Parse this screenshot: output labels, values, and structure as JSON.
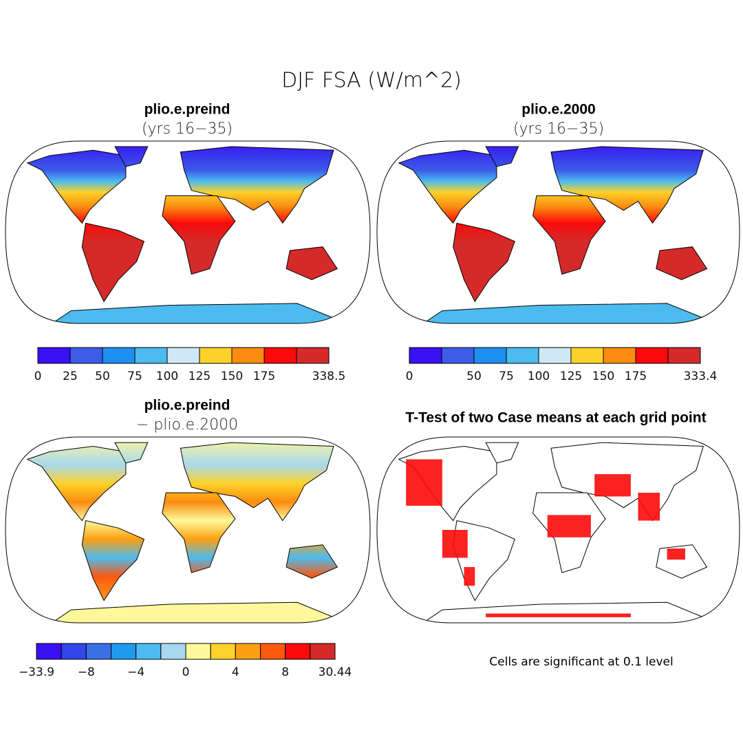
{
  "title": "DJF FSA (W/m^2)",
  "panels": [
    {
      "title": "plio.e.preind",
      "subtitle": "(yrs 16−35)",
      "colorbar": {
        "colors": [
          "#3a10f5",
          "#3b5be8",
          "#1e8ff0",
          "#4cbbef",
          "#cfe8f5",
          "#fcd22a",
          "#fb8c10",
          "#fb0a0a",
          "#d42a2a"
        ],
        "labels": [
          "0",
          "25",
          "50",
          "75",
          "100",
          "125",
          "150",
          "175",
          null,
          "338.5"
        ]
      }
    },
    {
      "title": "plio.e.2000",
      "subtitle": "(yrs 16−35)",
      "colorbar": {
        "colors": [
          "#3a10f5",
          "#3b5be8",
          "#1e8ff0",
          "#4cbbef",
          "#cfe8f5",
          "#fcd22a",
          "#fb8c10",
          "#fb0a0a",
          "#d42a2a"
        ],
        "labels": [
          "0",
          null,
          "50",
          "75",
          "100",
          "125",
          "150",
          "175",
          null,
          "333.4"
        ]
      }
    },
    {
      "title": "plio.e.preind",
      "subtitle": "− plio.e.2000",
      "colorbar": {
        "colors": [
          "#3a10f5",
          "#3344e8",
          "#3a6fe8",
          "#1e9aef",
          "#4cbbef",
          "#a8d8ef",
          "#fdf99a",
          "#fdd22a",
          "#fba010",
          "#fb5a10",
          "#fb0a0a",
          "#d42a2a"
        ],
        "labels": [
          "−33.9",
          null,
          "−8",
          null,
          "−4",
          null,
          "0",
          null,
          "4",
          null,
          "8",
          null,
          "30.44"
        ]
      }
    },
    {
      "title": "T-Test of two Case means at each grid point",
      "note": "Cells are significant at 0.1 level"
    }
  ]
}
